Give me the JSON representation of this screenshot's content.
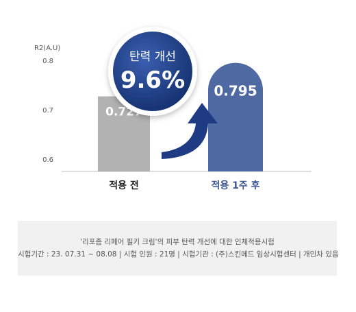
{
  "chart_data": {
    "type": "bar",
    "ylabel": "R2(A.U)",
    "ylim": [
      0.6,
      0.8
    ],
    "yticks": [
      0.8,
      0.7,
      0.6
    ],
    "categories": [
      "적용 전",
      "적용 1주 후"
    ],
    "values": [
      0.727,
      0.795
    ],
    "value_labels": [
      "0.727",
      "0.795"
    ],
    "bar_colors": [
      "#b2b2b2",
      "#4f6aa3"
    ],
    "category_label_colors": [
      "#222222",
      "#3b5690"
    ],
    "grid": false
  },
  "badge": {
    "label": "탄력 개선",
    "value": "9.6%",
    "color": "#1f3b84"
  },
  "arrow": {
    "icon": "curved-up-arrow-icon",
    "color": "#1f3b84"
  },
  "footnote": {
    "line1": "'리포좀 리페어 필키 크림'의 피부 탄력 개선에 대한 인체적용시험",
    "line2": "시험기간 : 23. 07.31 ~ 08.08 | 시험 인원 : 21명 | 시험기관 : (주)스킨메드 임상시험센터 | 개인차 있음"
  }
}
